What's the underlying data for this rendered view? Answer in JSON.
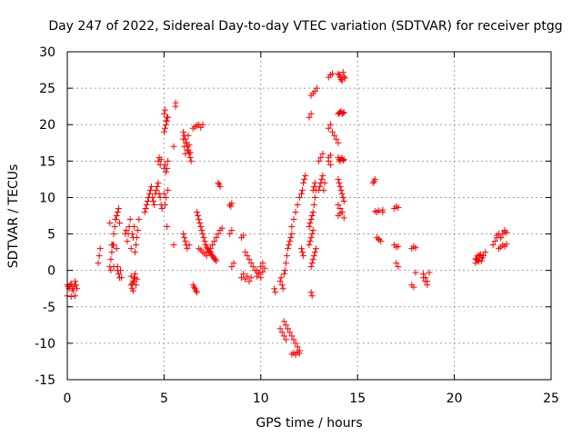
{
  "chart_data": {
    "type": "scatter",
    "title": "Day 247 of 2022, Sidereal Day-to-day VTEC variation (SDTVAR) for receiver ptgg",
    "xlabel": "GPS time / hours",
    "ylabel": "SDTVAR / TECUs",
    "xlim": [
      0,
      25
    ],
    "ylim": [
      -15,
      30
    ],
    "xticks": [
      0,
      5,
      10,
      15,
      20,
      25
    ],
    "yticks": [
      -15,
      -10,
      -5,
      0,
      5,
      10,
      15,
      20,
      25,
      30
    ],
    "grid": true,
    "marker": "plus",
    "color": "#ff0000",
    "series": [
      {
        "name": "SDTVAR",
        "x": [
          0.0,
          0.05,
          0.1,
          0.15,
          0.2,
          0.25,
          0.3,
          0.35,
          0.4,
          0.45,
          0.5,
          0.0,
          0.2,
          0.4,
          1.6,
          1.65,
          1.7,
          2.2,
          2.25,
          2.3,
          2.35,
          2.4,
          2.45,
          2.5,
          2.55,
          2.6,
          2.65,
          2.7,
          2.75,
          2.8,
          2.2,
          2.3,
          2.4,
          2.5,
          2.55,
          2.6,
          2.65,
          2.7,
          2.25,
          2.4,
          2.6,
          3.0,
          3.05,
          3.1,
          3.15,
          3.2,
          3.25,
          3.3,
          3.35,
          3.4,
          3.45,
          3.5,
          3.55,
          3.6,
          3.65,
          3.7,
          3.3,
          3.35,
          3.4,
          3.45,
          3.5,
          3.55,
          3.6,
          3.3,
          3.35,
          3.4,
          3.45,
          3.5,
          4.0,
          4.05,
          4.1,
          4.15,
          4.2,
          4.25,
          4.3,
          4.35,
          4.4,
          4.45,
          4.5,
          4.55,
          4.6,
          4.65,
          4.7,
          4.75,
          4.8,
          4.85,
          4.9,
          4.7,
          4.75,
          4.8,
          4.85,
          5.0,
          5.05,
          5.1,
          5.15,
          5.2,
          5.0,
          5.05,
          5.1,
          5.15,
          5.2,
          5.0,
          5.05,
          5.1,
          5.15,
          5.0,
          5.1,
          5.2,
          5.05,
          5.15,
          5.5,
          5.6,
          5.6,
          5.5,
          6.0,
          6.05,
          6.1,
          6.15,
          6.2,
          6.25,
          6.3,
          6.35,
          6.4,
          6.0,
          6.05,
          6.1,
          6.15,
          6.2,
          6.25,
          6.3,
          6.35,
          6.0,
          6.05,
          6.1,
          6.15,
          6.2,
          6.3,
          6.5,
          6.6,
          6.7,
          6.8,
          6.9,
          7.0,
          6.5,
          6.55,
          6.6,
          6.65,
          6.7,
          6.7,
          6.75,
          6.8,
          6.85,
          6.9,
          6.95,
          7.0,
          7.05,
          7.1,
          7.15,
          7.2,
          7.25,
          7.3,
          7.35,
          7.4,
          7.45,
          7.5,
          7.55,
          7.6,
          7.65,
          7.7,
          6.8,
          6.9,
          7.0,
          7.1,
          7.2,
          7.3,
          7.4,
          7.5,
          7.6,
          7.7,
          7.8,
          7.9,
          8.0,
          7.8,
          7.85,
          7.9,
          8.4,
          8.45,
          8.5,
          8.4,
          8.5,
          8.5,
          8.6,
          9.0,
          9.1,
          9.2,
          9.3,
          9.4,
          9.5,
          9.6,
          9.7,
          9.0,
          9.1,
          9.2,
          9.3,
          9.4,
          9.5,
          9.8,
          9.9,
          10.0,
          10.1,
          10.2,
          9.8,
          9.9,
          10.0,
          10.1,
          10.7,
          10.75,
          11.0,
          11.05,
          11.1,
          11.15,
          11.2,
          11.25,
          11.3,
          11.35,
          11.4,
          11.45,
          11.5,
          11.55,
          11.6,
          11.2,
          11.3,
          11.4,
          11.5,
          11.6,
          11.7,
          11.8,
          11.9,
          12.0,
          11.6,
          11.7,
          11.8,
          11.9,
          12.0,
          11.0,
          11.1,
          11.2,
          11.3,
          11.6,
          11.7,
          11.8,
          11.9,
          12.0,
          12.1,
          12.15,
          12.2,
          12.25,
          12.3,
          12.1,
          12.15,
          12.2,
          12.5,
          12.55,
          12.6,
          12.65,
          12.7,
          12.5,
          12.55,
          12.6,
          12.65,
          12.7,
          12.75,
          12.8,
          12.85,
          12.6,
          12.65,
          12.7,
          12.75,
          12.8,
          12.85,
          12.6,
          12.65,
          12.7,
          12.75,
          12.8,
          12.6,
          12.7,
          12.8,
          12.9,
          12.5,
          12.6,
          13.0,
          13.05,
          13.1,
          13.15,
          13.2,
          13.25,
          13.3,
          13.0,
          13.1,
          13.2,
          13.5,
          13.6,
          13.7,
          13.5,
          13.6,
          13.7,
          13.8,
          13.9,
          14.0,
          13.5,
          13.6,
          13.5,
          13.6,
          14.0,
          14.05,
          14.1,
          14.15,
          14.2,
          14.25,
          14.3,
          14.35,
          14.0,
          14.05,
          14.1,
          14.15,
          14.2,
          14.25,
          14.3,
          14.0,
          14.05,
          14.1,
          14.15,
          14.2,
          14.25,
          14.3,
          14.0,
          14.05,
          14.1,
          14.15,
          14.2,
          14.25,
          14.3,
          14.0,
          14.1,
          14.2,
          14.0,
          14.1,
          14.2,
          14.3,
          15.8,
          15.9,
          15.85,
          16.0,
          16.1,
          16.0,
          16.1,
          16.2,
          16.3,
          15.9,
          16.1,
          16.3,
          16.9,
          17.0,
          17.1,
          16.9,
          17.0,
          17.1,
          17.0,
          17.1,
          17.8,
          17.9,
          18.0,
          17.8,
          17.9,
          18.0,
          18.4,
          18.5,
          18.6,
          18.4,
          18.5,
          18.6,
          18.7,
          21.1,
          21.15,
          21.2,
          21.25,
          21.3,
          21.35,
          21.4,
          21.45,
          21.5,
          21.6,
          21.1,
          21.2,
          21.3,
          22.0,
          22.1,
          22.2,
          22.3,
          22.4,
          22.5,
          22.6,
          22.7,
          22.3,
          22.4,
          22.5,
          22.6,
          22.7,
          22.2,
          22.4,
          22.6
        ],
        "y": [
          -2.0,
          -2.2,
          -2.5,
          -2.0,
          -1.8,
          -2.5,
          -2.8,
          -2.2,
          -1.5,
          -2.0,
          -2.5,
          -3.5,
          -3.6,
          -3.5,
          1.0,
          2.0,
          3.0,
          0.5,
          1.5,
          2.5,
          3.5,
          5.0,
          6.0,
          7.0,
          7.5,
          8.0,
          8.5,
          6.5,
          0.0,
          -1.0,
          6.5,
          3.5,
          3.5,
          7.0,
          3.0,
          0.5,
          -0.5,
          -1.0,
          0.0,
          0.5,
          0.0,
          5.0,
          5.5,
          4.0,
          5.0,
          6.0,
          7.0,
          3.0,
          5.0,
          4.5,
          6.0,
          2.5,
          3.5,
          4.5,
          5.5,
          7.0,
          -2.0,
          -2.5,
          -1.5,
          -1.0,
          -0.5,
          -2.0,
          -1.2,
          -0.8,
          -1.8,
          -2.8,
          -1.5,
          -1.0,
          8.0,
          8.5,
          9.0,
          9.5,
          10.0,
          10.5,
          11.0,
          11.5,
          10.0,
          9.5,
          9.0,
          10.5,
          11.0,
          11.5,
          12.0,
          10.5,
          10.0,
          9.0,
          8.5,
          15.0,
          15.5,
          14.5,
          15.2,
          14.0,
          14.5,
          13.5,
          14.0,
          15.0,
          19.0,
          19.5,
          20.0,
          20.5,
          21.0,
          21.5,
          22.0,
          20.5,
          21.0,
          10.5,
          10.0,
          11.0,
          9.0,
          6.0,
          17.0,
          22.5,
          23.0,
          3.5,
          19.0,
          18.5,
          18.0,
          17.5,
          17.0,
          16.5,
          16.0,
          15.5,
          15.0,
          18.0,
          17.0,
          16.0,
          17.5,
          16.5,
          18.5,
          17.2,
          16.2,
          5.0,
          4.5,
          4.0,
          3.5,
          3.0,
          3.5,
          19.5,
          19.7,
          19.9,
          20.0,
          19.6,
          20.0,
          -2.0,
          -2.3,
          -2.5,
          -2.8,
          -3.0,
          8.0,
          7.5,
          7.0,
          6.5,
          6.0,
          5.5,
          5.0,
          4.5,
          4.0,
          3.5,
          3.2,
          3.0,
          2.8,
          2.6,
          2.5,
          2.2,
          2.0,
          1.8,
          1.6,
          1.5,
          1.3,
          3.0,
          2.8,
          2.5,
          2.3,
          2.0,
          2.5,
          3.0,
          3.5,
          4.0,
          4.5,
          5.0,
          5.5,
          5.8,
          12.0,
          11.8,
          11.5,
          9.0,
          8.8,
          9.2,
          5.0,
          5.5,
          0.5,
          1.0,
          4.5,
          4.8,
          2.5,
          2.0,
          1.5,
          1.0,
          0.5,
          0.0,
          -1.0,
          -0.5,
          -1.2,
          -0.8,
          -1.5,
          -1.0,
          0.0,
          -0.5,
          -1.0,
          -0.2,
          0.3,
          -0.8,
          -0.3,
          0.5,
          1.0,
          -2.5,
          -3.0,
          -1.5,
          -1.0,
          -2.0,
          -2.5,
          -0.5,
          0.0,
          1.0,
          2.0,
          3.0,
          3.5,
          4.0,
          4.5,
          5.0,
          -7.0,
          -7.5,
          -8.0,
          -8.5,
          -9.0,
          -9.5,
          -10.0,
          -10.5,
          -11.0,
          -11.5,
          -11.3,
          -11.6,
          -11.2,
          -11.4,
          -8.0,
          -8.5,
          -9.0,
          -9.5,
          6.0,
          7.0,
          8.0,
          9.0,
          10.0,
          10.5,
          11.0,
          12.0,
          12.5,
          13.0,
          3.0,
          2.5,
          2.0,
          3.5,
          4.0,
          4.5,
          5.0,
          5.5,
          6.0,
          6.5,
          7.0,
          7.5,
          8.0,
          9.0,
          10.0,
          11.0,
          0.5,
          1.0,
          1.5,
          2.0,
          2.5,
          3.0,
          -3.0,
          -3.5,
          11.0,
          11.5,
          12.0,
          24.0,
          24.3,
          24.6,
          25.0,
          21.0,
          21.5,
          11.0,
          11.5,
          12.0,
          12.5,
          13.0,
          11.0,
          12.0,
          15.0,
          15.5,
          16.0,
          26.5,
          26.8,
          27.0,
          19.5,
          20.0,
          19.0,
          18.5,
          18.0,
          17.5,
          15.0,
          14.5,
          15.5,
          15.8,
          27.0,
          26.8,
          26.5,
          26.2,
          26.0,
          27.2,
          26.6,
          26.4,
          21.5,
          21.6,
          21.7,
          21.8,
          21.5,
          21.6,
          21.7,
          15.5,
          15.2,
          15.0,
          15.4,
          15.3,
          15.1,
          15.2,
          12.5,
          12.0,
          11.5,
          11.0,
          10.5,
          10.0,
          9.5,
          9.0,
          8.5,
          8.0,
          7.5,
          7.8,
          8.0,
          7.2,
          12.0,
          12.5,
          12.2,
          8.0,
          8.2,
          4.5,
          4.3,
          4.0,
          8.3,
          8.1,
          4.2,
          8.0,
          8.5,
          8.8,
          8.6,
          3.5,
          3.2,
          3.3,
          1.0,
          0.5,
          3.0,
          3.3,
          3.1,
          -2.0,
          -2.3,
          -0.3,
          -0.5,
          -1.0,
          -1.5,
          -1.0,
          -1.5,
          -2.0,
          -0.3,
          1.0,
          1.5,
          2.0,
          1.2,
          1.8,
          2.2,
          1.3,
          1.7,
          2.0,
          2.5,
          1.6,
          1.4,
          2.1,
          3.5,
          4.0,
          4.5,
          5.0,
          4.5,
          5.0,
          5.5,
          5.2,
          3.0,
          3.2,
          3.5,
          3.3,
          3.6,
          4.8,
          4.5,
          5.3
        ]
      }
    ]
  }
}
